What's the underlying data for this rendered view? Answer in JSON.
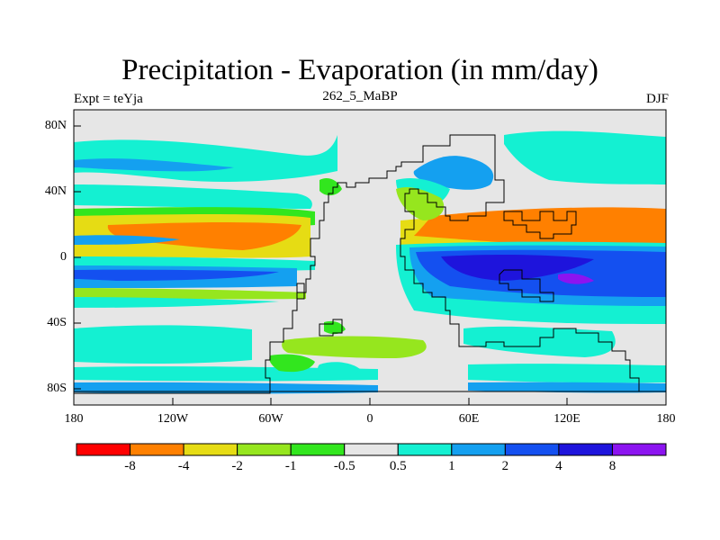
{
  "title": "Precipitation - Evaporation (in mm/day)",
  "subtitle_left": "Expt = teYja",
  "subtitle_center": "262_5_MaBP",
  "subtitle_right": "DJF",
  "y_ticks": [
    "80N",
    "40N",
    "0",
    "40S",
    "80S"
  ],
  "x_ticks": [
    "180",
    "120W",
    "60W",
    "0",
    "60E",
    "120E",
    "180"
  ],
  "colorbar": {
    "colors": [
      "#ff0000",
      "#ff8000",
      "#e6dc14",
      "#96e61e",
      "#32e61e",
      "#e6e6e6",
      "#14f0d2",
      "#14a0f0",
      "#1450f0",
      "#1e14dc",
      "#8c14f0"
    ],
    "labels": [
      "-8",
      "-4",
      "-2",
      "-1",
      "-0.5",
      "0.5",
      "1",
      "2",
      "4",
      "8"
    ]
  }
}
